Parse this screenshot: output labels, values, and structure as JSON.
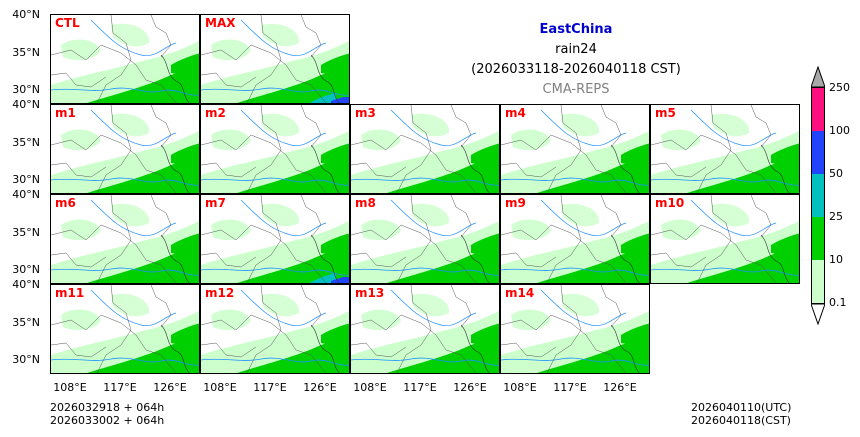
{
  "header": {
    "region": "EastChina",
    "variable": "rain24",
    "period": "(2026033118-2026040118 CST)",
    "model": "CMA-REPS"
  },
  "panels": [
    {
      "label": "CTL"
    },
    {
      "label": "MAX"
    },
    {
      "label": "m1"
    },
    {
      "label": "m2"
    },
    {
      "label": "m3"
    },
    {
      "label": "m4"
    },
    {
      "label": "m5"
    },
    {
      "label": "m6"
    },
    {
      "label": "m7"
    },
    {
      "label": "m8"
    },
    {
      "label": "m9"
    },
    {
      "label": "m10"
    },
    {
      "label": "m11"
    },
    {
      "label": "m12"
    },
    {
      "label": "m13"
    },
    {
      "label": "m14"
    }
  ],
  "axes": {
    "lat_top": "40°N",
    "lat_mid": "35°N",
    "lat_low": "30°N",
    "lon": [
      "108°E",
      "117°E",
      "126°E"
    ]
  },
  "colorbar": {
    "levels": [
      "0.1",
      "10",
      "25",
      "50",
      "100",
      "250"
    ],
    "colors": [
      "#ccffcc",
      "#00d000",
      "#00c0c0",
      "#2244ff",
      "#ff1080",
      "#a8a8a8"
    ]
  },
  "footer": {
    "init1": "2026032918  +  064h",
    "init2": "2026033002  +  064h",
    "valid_utc": "2026040110(UTC)",
    "valid_cst": "2026040118(CST)"
  },
  "colors": {
    "panel_label": "#ff0000",
    "region_title": "#0000cc",
    "model": "#808080"
  }
}
